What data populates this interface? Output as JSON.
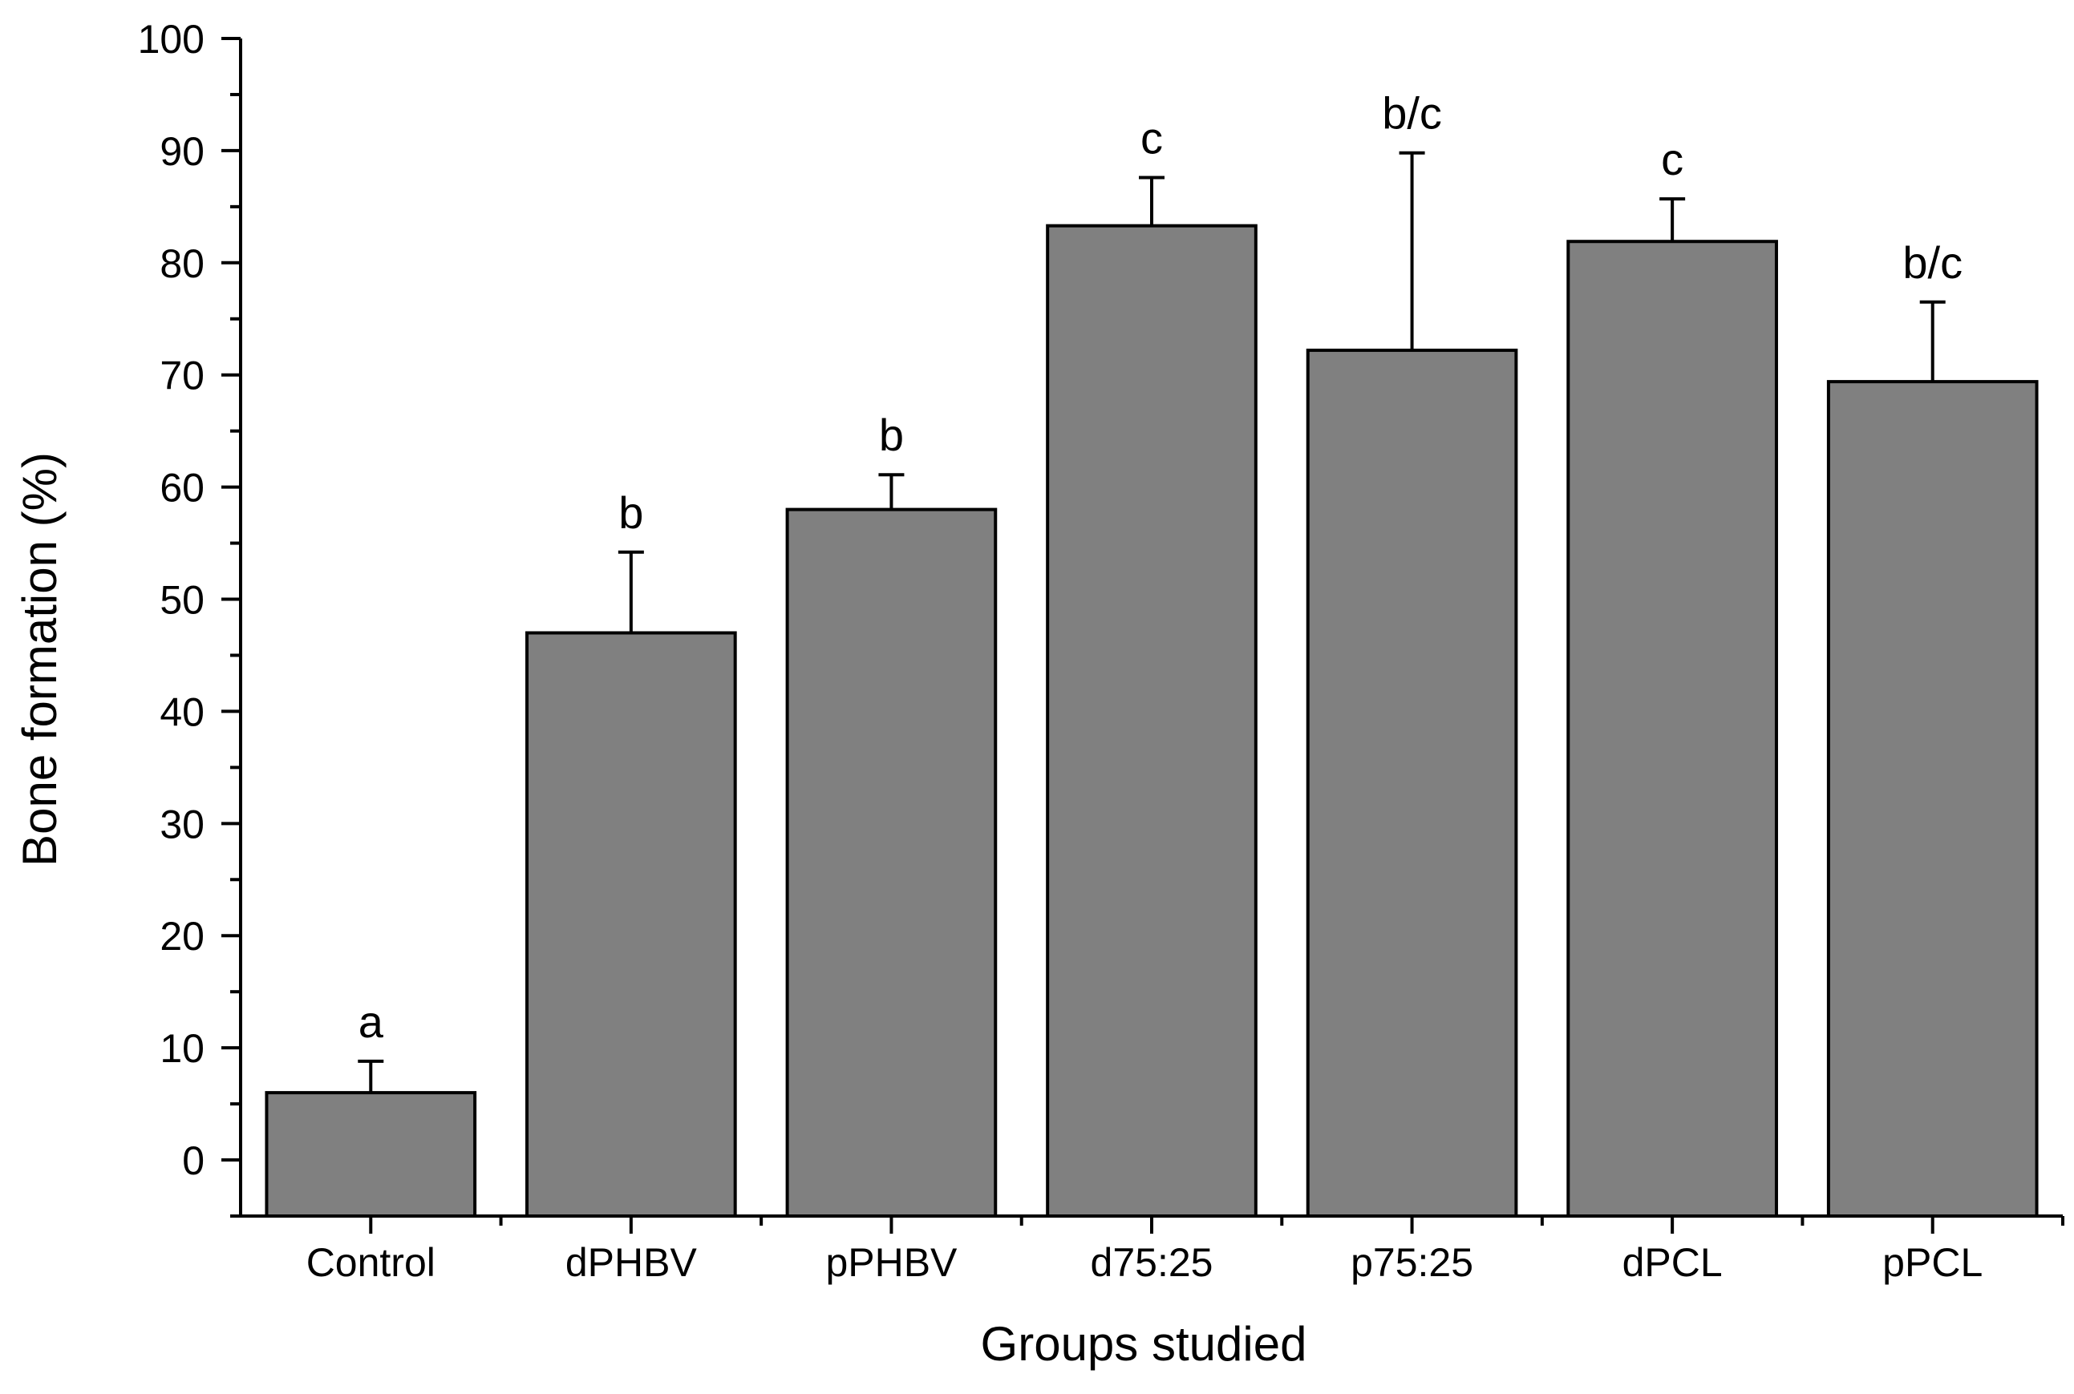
{
  "chart_data": {
    "type": "bar",
    "xlabel": "Groups studied",
    "ylabel": "Bone formation (%)",
    "categories": [
      "Control",
      "dPHBV",
      "pPHBV",
      "d75:25",
      "p75:25",
      "dPCL",
      "pPCL"
    ],
    "values": [
      6,
      47,
      58,
      83.3,
      72.2,
      81.9,
      69.4
    ],
    "errors": [
      2.8,
      7.2,
      3.1,
      4.3,
      17.6,
      3.8,
      7.1
    ],
    "significance": [
      "a",
      "b",
      "b",
      "c",
      "b/c",
      "c",
      "b/c"
    ],
    "ylim": [
      -5,
      100
    ],
    "yticks": [
      0,
      10,
      20,
      30,
      40,
      50,
      60,
      70,
      80,
      90,
      100
    ],
    "grid": false,
    "colors": {
      "bar": "#808080",
      "outline": "#000000"
    }
  }
}
